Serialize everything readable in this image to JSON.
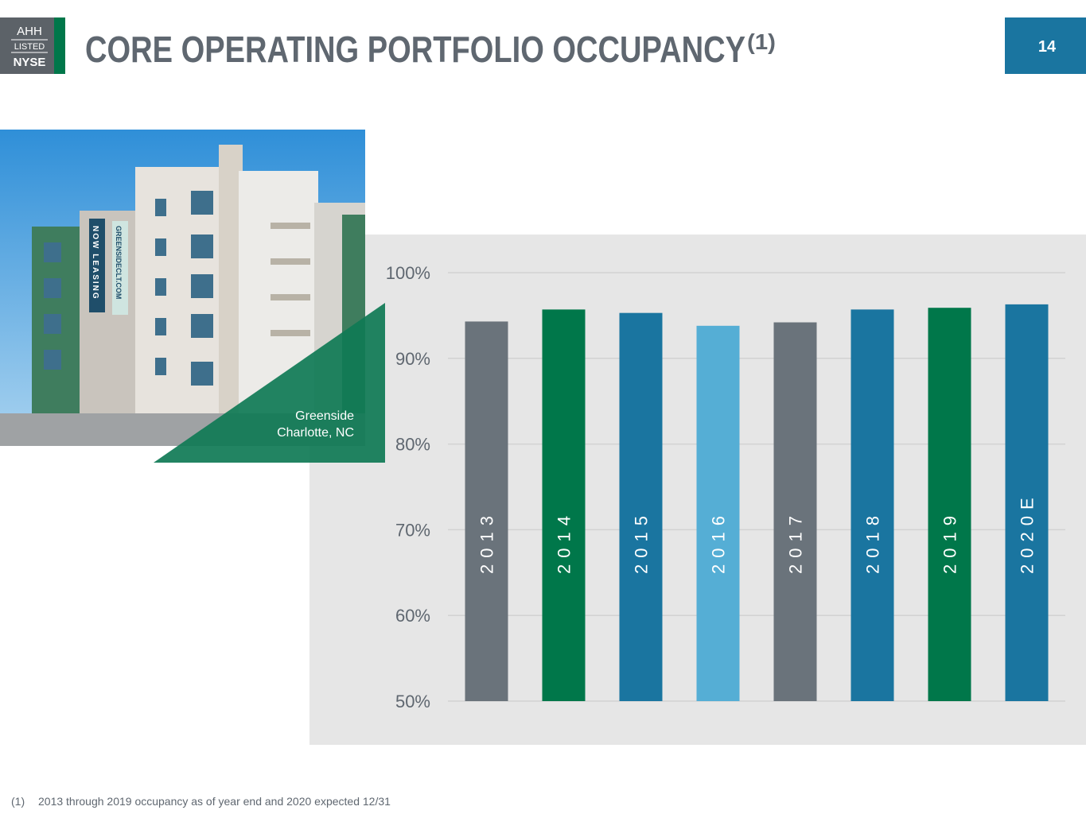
{
  "header": {
    "logo": {
      "ticker": "AHH",
      "listed": "LISTED",
      "exchange": "NYSE"
    },
    "title": "CORE OPERATING PORTFOLIO OCCUPANCY",
    "title_note": "(1)",
    "page_number": "14"
  },
  "photo": {
    "signs": [
      "NOW LEASING",
      "GREENSIDECLT.COM"
    ],
    "caption": [
      "Greenside",
      "Charlotte, NC"
    ]
  },
  "chart_data": {
    "type": "bar",
    "categories": [
      "2013",
      "2014",
      "2015",
      "2016",
      "2017",
      "2018",
      "2019",
      "2020E"
    ],
    "values": [
      94.3,
      95.7,
      95.3,
      93.8,
      94.2,
      95.7,
      95.9,
      96.3
    ],
    "colors": [
      "#6a737b",
      "#00774a",
      "#1a75a0",
      "#55aed5",
      "#6a737b",
      "#1a75a0",
      "#00774a",
      "#1a75a0"
    ],
    "ylim": [
      50,
      100
    ],
    "yticks": [
      {
        "value": 50,
        "label": "50%"
      },
      {
        "value": 60,
        "label": "60%"
      },
      {
        "value": 70,
        "label": "70%"
      },
      {
        "value": 80,
        "label": "80%"
      },
      {
        "value": 90,
        "label": "90%"
      },
      {
        "value": 100,
        "label": "100%"
      }
    ],
    "grid": true
  },
  "footnote": {
    "marker": "(1)",
    "text": "2013 through 2019 occupancy as of year end and 2020 expected 12/31"
  }
}
